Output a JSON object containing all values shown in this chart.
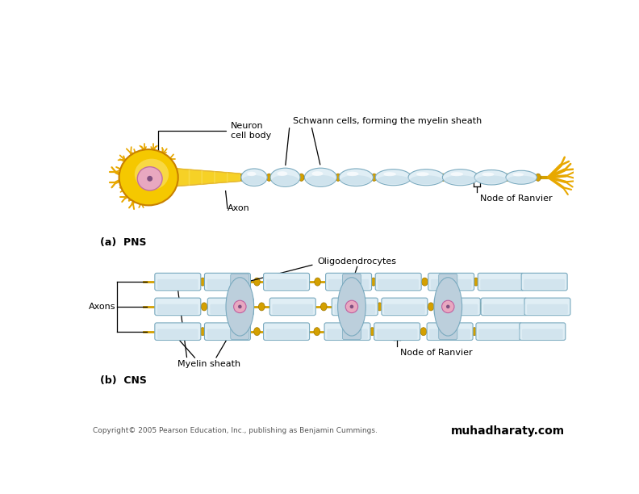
{
  "bg_color": "#ffffff",
  "fig_width": 7.92,
  "fig_height": 6.12,
  "dpi": 100,
  "pns_label": "(a)  PNS",
  "cns_label": "(b)  CNS",
  "labels": {
    "neuron_cell_body": "Neuron\ncell body",
    "schwann_cells": "Schwann cells, forming the myelin sheath",
    "axon": "Axon",
    "node_of_ranvier_pns": "Node of Ranvier",
    "oligodendrocytes": "Oligodendrocytes",
    "axons": "Axons",
    "myelin_sheath": "Myelin sheath",
    "node_of_ranvier_cns": "Node of Ranvier"
  },
  "copyright": "Copyright© 2005 Pearson Education, Inc., publishing as Benjamin Cummings.",
  "website": "muhadharaty.com",
  "colors": {
    "yellow_gold": "#E8A800",
    "yellow_body": "#F5C800",
    "yellow_light": "#FAE060",
    "myelin_blue": "#C5DCE8",
    "myelin_mid": "#A8C8DC",
    "myelin_outline": "#7AAABF",
    "myelin_light": "#E0EEF5",
    "node_yellow": "#D4A000",
    "nucleus_pink": "#E8A8C0",
    "nucleus_purple": "#805080",
    "oligo_body": "#BCCFDC",
    "line_color": "#000000",
    "text_color": "#000000",
    "axon_line": "#C8A000"
  }
}
